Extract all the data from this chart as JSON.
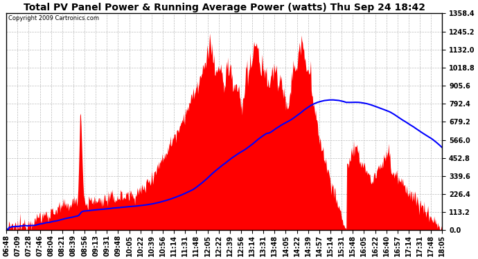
{
  "title": "Total PV Panel Power & Running Average Power (watts) Thu Sep 24 18:42",
  "copyright": "Copyright 2009 Cartronics.com",
  "background_color": "#ffffff",
  "plot_bg_color": "#ffffff",
  "grid_color": "#bbbbbb",
  "fill_color": "#ff0000",
  "line_color": "#0000ff",
  "ymax": 1358.4,
  "ymin": 0.0,
  "yticks": [
    0.0,
    113.2,
    226.4,
    339.6,
    452.8,
    566.0,
    679.2,
    792.4,
    905.6,
    1018.8,
    1132.0,
    1245.2,
    1358.4
  ],
  "x_labels": [
    "06:48",
    "07:09",
    "07:28",
    "07:46",
    "08:04",
    "08:21",
    "08:39",
    "08:56",
    "09:13",
    "09:31",
    "09:48",
    "10:05",
    "10:22",
    "10:39",
    "10:56",
    "11:14",
    "11:31",
    "11:48",
    "12:05",
    "12:22",
    "12:39",
    "12:56",
    "13:14",
    "13:31",
    "13:48",
    "14:05",
    "14:22",
    "14:39",
    "14:57",
    "15:14",
    "15:31",
    "15:48",
    "16:05",
    "16:22",
    "16:40",
    "16:57",
    "17:14",
    "17:31",
    "17:48",
    "18:05"
  ],
  "n_points": 700,
  "title_fontsize": 10,
  "tick_fontsize": 7,
  "copyright_fontsize": 6
}
